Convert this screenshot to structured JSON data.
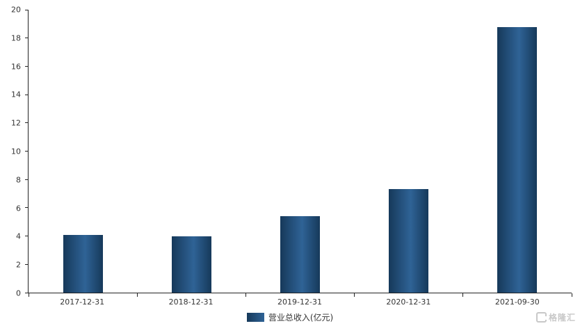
{
  "chart_data": {
    "type": "bar",
    "categories": [
      "2017-12-31",
      "2018-12-31",
      "2019-12-31",
      "2020-12-31",
      "2021-09-30"
    ],
    "values": [
      4.1,
      4.0,
      5.4,
      7.3,
      18.75
    ],
    "title": "",
    "xlabel": "",
    "ylabel": "",
    "ylim": [
      0,
      20
    ],
    "ytick_step": 2,
    "grid": false,
    "legend_position": "bottom",
    "series_name": "营业总收入(亿元)"
  },
  "legend": {
    "label": "营业总收入(亿元)"
  },
  "colors": {
    "bar_gradient_start": "#16395a",
    "bar_gradient_end": "#2f6396",
    "legend_swatch": "#2a5a8c",
    "axis": "#222222",
    "tick_text": "#333333"
  },
  "watermark": {
    "text": "格隆汇"
  }
}
